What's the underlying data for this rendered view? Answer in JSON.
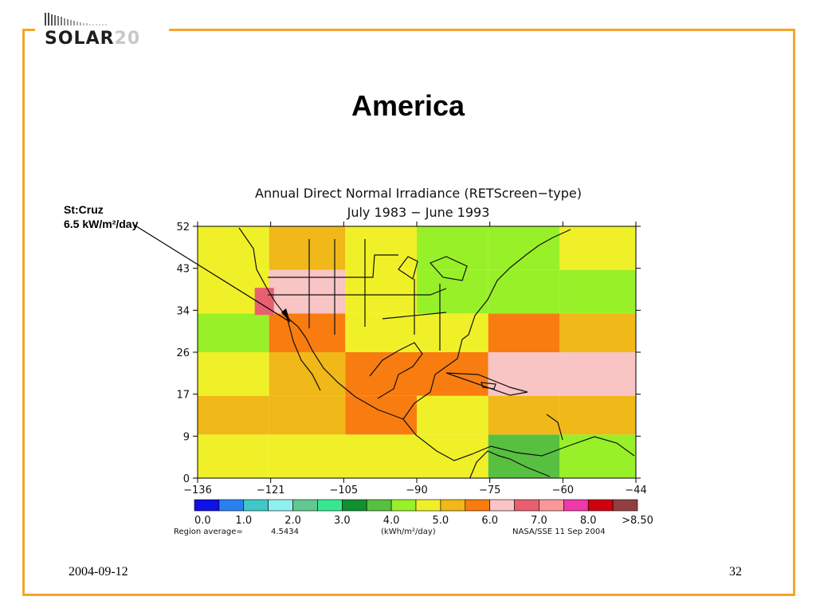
{
  "slide": {
    "logo_word": "SOLAR",
    "logo_number": "20",
    "title": "America",
    "footer_date": "2004-09-12",
    "page_number": "32"
  },
  "callout": {
    "line1": "St:Cruz",
    "line2": "6.5 kW/m²/day"
  },
  "colors": {
    "frame": "#f4a52a"
  },
  "chart_data": {
    "type": "heatmap",
    "title": "Annual Direct Normal Irradiance (RETScreen−type)",
    "subtitle": "July 1983 − June 1993",
    "x_ticks": [
      "−136",
      "−121",
      "−105",
      "−90",
      "−75",
      "−60",
      "−44"
    ],
    "y_ticks": [
      "52",
      "43",
      "34",
      "26",
      "17",
      "9",
      "0"
    ],
    "xlim": [
      -136,
      -44
    ],
    "ylim": [
      0,
      52
    ],
    "legend": {
      "colors": [
        "#1010e8",
        "#2a80f0",
        "#40c8c8",
        "#90f0f0",
        "#60c890",
        "#38e890",
        "#109030",
        "#58c040",
        "#98f028",
        "#f0f028",
        "#f0b818",
        "#f87c10",
        "#f8c4c4",
        "#e86070",
        "#f89898",
        "#f038a8",
        "#d00010",
        "#904040"
      ],
      "tick_labels": [
        "0.0",
        "1.0",
        "2.0",
        "3.0",
        "4.0",
        "5.0",
        "6.0",
        "7.0",
        "8.0",
        ">8.50"
      ]
    },
    "region_average_label": "Region average=",
    "region_average_value": "4.5434",
    "units": "(kWh/m²/day)",
    "source": "NASA/SSE 11 Sep 2004",
    "grid_data": [
      [
        -136,
        -121,
        0,
        9,
        4.8
      ],
      [
        -121,
        -90,
        0,
        9,
        4.6
      ],
      [
        -90,
        -75,
        0,
        9,
        4.9
      ],
      [
        -75,
        -60,
        0,
        9,
        3.9
      ],
      [
        -60,
        -44,
        0,
        9,
        4.4
      ],
      [
        -136,
        -121,
        9,
        17,
        5.2
      ],
      [
        -121,
        -105,
        9,
        17,
        5.0
      ],
      [
        -105,
        -90,
        9,
        17,
        5.6
      ],
      [
        -90,
        -75,
        9,
        17,
        4.7
      ],
      [
        -75,
        -60,
        9,
        17,
        5.4
      ],
      [
        -60,
        -44,
        9,
        17,
        5.3
      ],
      [
        -136,
        -121,
        17,
        26,
        4.8
      ],
      [
        -121,
        -105,
        17,
        26,
        5.2
      ],
      [
        -105,
        -90,
        17,
        26,
        5.5
      ],
      [
        -90,
        -75,
        17,
        26,
        5.9
      ],
      [
        -75,
        -60,
        17,
        26,
        6.1
      ],
      [
        -60,
        -44,
        17,
        26,
        6.3
      ],
      [
        -136,
        -121,
        26,
        34,
        4.2
      ],
      [
        -121,
        -105,
        26,
        34,
        5.8
      ],
      [
        -105,
        -90,
        26,
        34,
        4.8
      ],
      [
        -90,
        -75,
        26,
        34,
        4.5
      ],
      [
        -75,
        -60,
        26,
        34,
        5.6
      ],
      [
        -60,
        -44,
        26,
        34,
        5.0
      ],
      [
        -136,
        -121,
        34,
        43,
        4.6
      ],
      [
        -121,
        -105,
        34,
        43,
        6.2
      ],
      [
        -105,
        -90,
        34,
        43,
        4.8
      ],
      [
        -90,
        -75,
        34,
        43,
        4.3
      ],
      [
        -75,
        -60,
        34,
        43,
        4.2
      ],
      [
        -60,
        -44,
        34,
        43,
        4.4
      ],
      [
        -136,
        -121,
        43,
        52,
        4.5
      ],
      [
        -121,
        -105,
        43,
        52,
        5.2
      ],
      [
        -105,
        -90,
        43,
        52,
        4.7
      ],
      [
        -90,
        -75,
        43,
        52,
        4.3
      ],
      [
        -75,
        -60,
        43,
        52,
        4.2
      ],
      [
        -60,
        -44,
        43,
        52,
        4.5
      ]
    ],
    "highlight": {
      "lon": -122,
      "lat": 37,
      "value": 6.5
    }
  }
}
